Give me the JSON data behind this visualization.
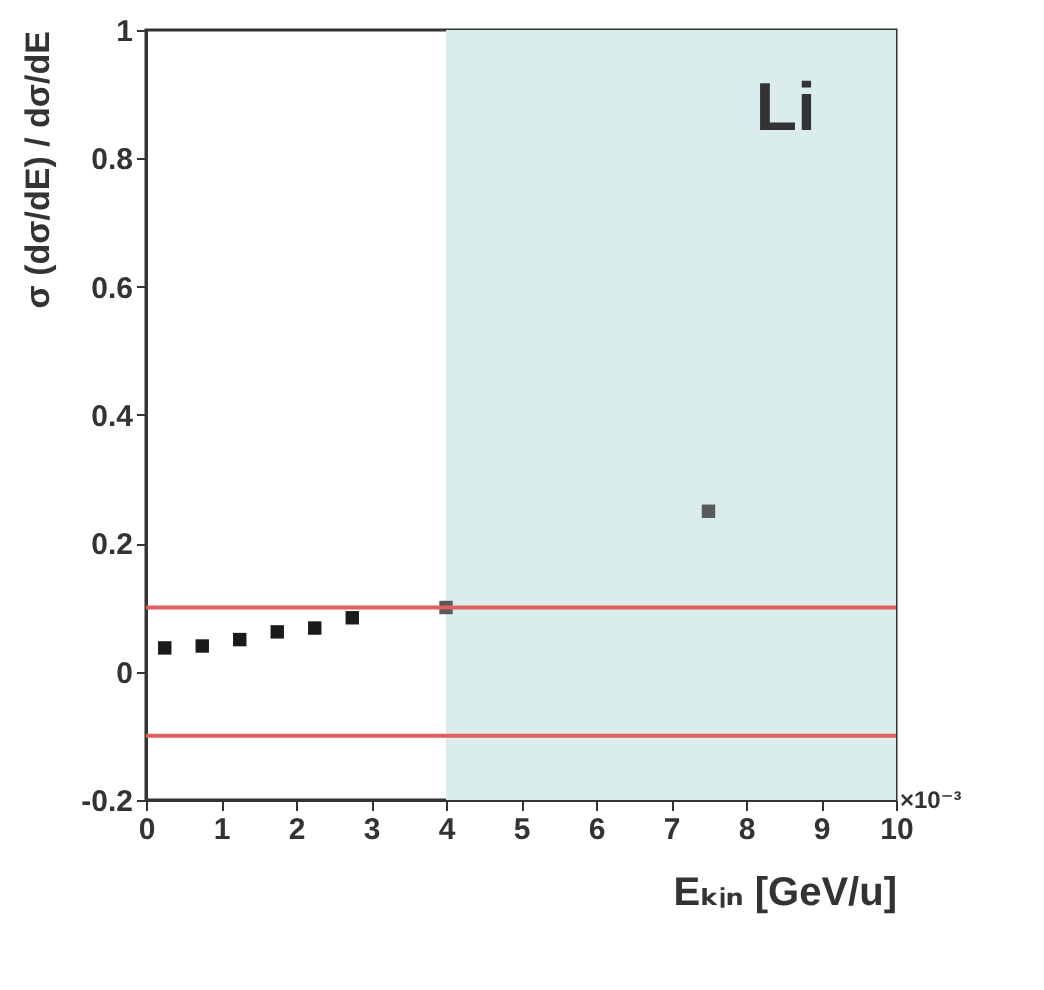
{
  "chart_data": {
    "type": "scatter",
    "xlabel": "Eₖᵢₙ [GeV/u]",
    "ylabel": "σ (dσ/dE) / dσ/dE",
    "annotations": [
      "Li",
      "×10⁻³"
    ],
    "xlim": [
      0,
      10
    ],
    "xticks": [
      0,
      1,
      2,
      3,
      4,
      5,
      6,
      7,
      8,
      9,
      10
    ],
    "ylim": [
      -0.2,
      1
    ],
    "yticks": [
      -0.2,
      0,
      0.2,
      0.4,
      0.6,
      0.8,
      1
    ],
    "grid": false,
    "marker": "square",
    "series": [
      {
        "color": "#1a1a1a",
        "x": [
          0.25,
          0.75,
          1.25,
          1.75,
          2.25,
          2.75
        ],
        "values": [
          0.037,
          0.04,
          0.05,
          0.062,
          0.068,
          0.084
        ]
      },
      {
        "color": "#5a5a5a",
        "x": [
          4,
          7.5
        ],
        "values": [
          0.1,
          0.25
        ]
      }
    ],
    "ref_lines": [
      {
        "axis": "y",
        "value": 0.1,
        "color": "#e06060"
      },
      {
        "axis": "y",
        "value": -0.1,
        "color": "#e06060"
      }
    ],
    "bands": [
      {
        "axis": "x",
        "from": 4,
        "to": 10,
        "color": "#dbeced"
      }
    ]
  }
}
